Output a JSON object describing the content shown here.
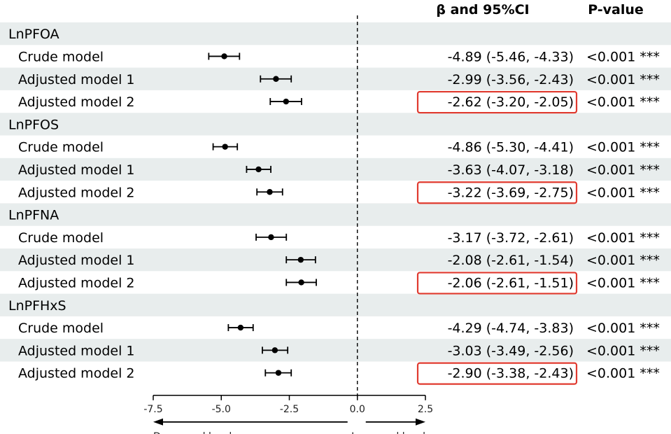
{
  "headers": {
    "ci": "β and 95%CI",
    "p": "P-value"
  },
  "chart_data": {
    "type": "forest",
    "xlim": [
      -7.5,
      2.5
    ],
    "xticks": [
      "-7.5",
      "-5.0",
      "-2.5",
      "0.0",
      "2.5"
    ],
    "reference_line": 0,
    "direction_labels": {
      "left": "Decreased level",
      "right": "Increased level"
    },
    "groups": [
      {
        "name": "LnPFOA",
        "rows": [
          {
            "label": "Crude model",
            "beta": -4.89,
            "lo": -5.46,
            "hi": -4.33,
            "ci_text": "-4.89 (-5.46, -4.33)",
            "p_text": "<0.001 ***",
            "highlight": false
          },
          {
            "label": "Adjusted model 1",
            "beta": -2.99,
            "lo": -3.56,
            "hi": -2.43,
            "ci_text": "-2.99 (-3.56, -2.43)",
            "p_text": "<0.001 ***",
            "highlight": false
          },
          {
            "label": "Adjusted model 2",
            "beta": -2.62,
            "lo": -3.2,
            "hi": -2.05,
            "ci_text": "-2.62 (-3.20, -2.05)",
            "p_text": "<0.001 ***",
            "highlight": true
          }
        ]
      },
      {
        "name": "LnPFOS",
        "rows": [
          {
            "label": "Crude model",
            "beta": -4.86,
            "lo": -5.3,
            "hi": -4.41,
            "ci_text": "-4.86 (-5.30, -4.41)",
            "p_text": "<0.001 ***",
            "highlight": false
          },
          {
            "label": "Adjusted model 1",
            "beta": -3.63,
            "lo": -4.07,
            "hi": -3.18,
            "ci_text": "-3.63 (-4.07, -3.18)",
            "p_text": "<0.001 ***",
            "highlight": false
          },
          {
            "label": "Adjusted model 2",
            "beta": -3.22,
            "lo": -3.69,
            "hi": -2.75,
            "ci_text": "-3.22 (-3.69, -2.75)",
            "p_text": "<0.001 ***",
            "highlight": true
          }
        ]
      },
      {
        "name": "LnPFNA",
        "rows": [
          {
            "label": "Crude model",
            "beta": -3.17,
            "lo": -3.72,
            "hi": -2.61,
            "ci_text": "-3.17 (-3.72, -2.61)",
            "p_text": "<0.001 ***",
            "highlight": false
          },
          {
            "label": "Adjusted model 1",
            "beta": -2.08,
            "lo": -2.61,
            "hi": -1.54,
            "ci_text": "-2.08 (-2.61, -1.54)",
            "p_text": "<0.001 ***",
            "highlight": false
          },
          {
            "label": "Adjusted model 2",
            "beta": -2.06,
            "lo": -2.61,
            "hi": -1.51,
            "ci_text": "-2.06 (-2.61, -1.51)",
            "p_text": "<0.001 ***",
            "highlight": true
          }
        ]
      },
      {
        "name": "LnPFHxS",
        "rows": [
          {
            "label": "Crude model",
            "beta": -4.29,
            "lo": -4.74,
            "hi": -3.83,
            "ci_text": "-4.29 (-4.74, -3.83)",
            "p_text": "<0.001 ***",
            "highlight": false
          },
          {
            "label": "Adjusted model 1",
            "beta": -3.03,
            "lo": -3.49,
            "hi": -2.56,
            "ci_text": "-3.03 (-3.49, -2.56)",
            "p_text": "<0.001 ***",
            "highlight": false
          },
          {
            "label": "Adjusted model 2",
            "beta": -2.9,
            "lo": -3.38,
            "hi": -2.43,
            "ci_text": "-2.90 (-3.38, -2.43)",
            "p_text": "<0.001 ***",
            "highlight": true
          }
        ]
      }
    ],
    "colors": {
      "stripe": "#e8eded",
      "highlight": "#e03a2f",
      "ink": "#000000"
    }
  }
}
